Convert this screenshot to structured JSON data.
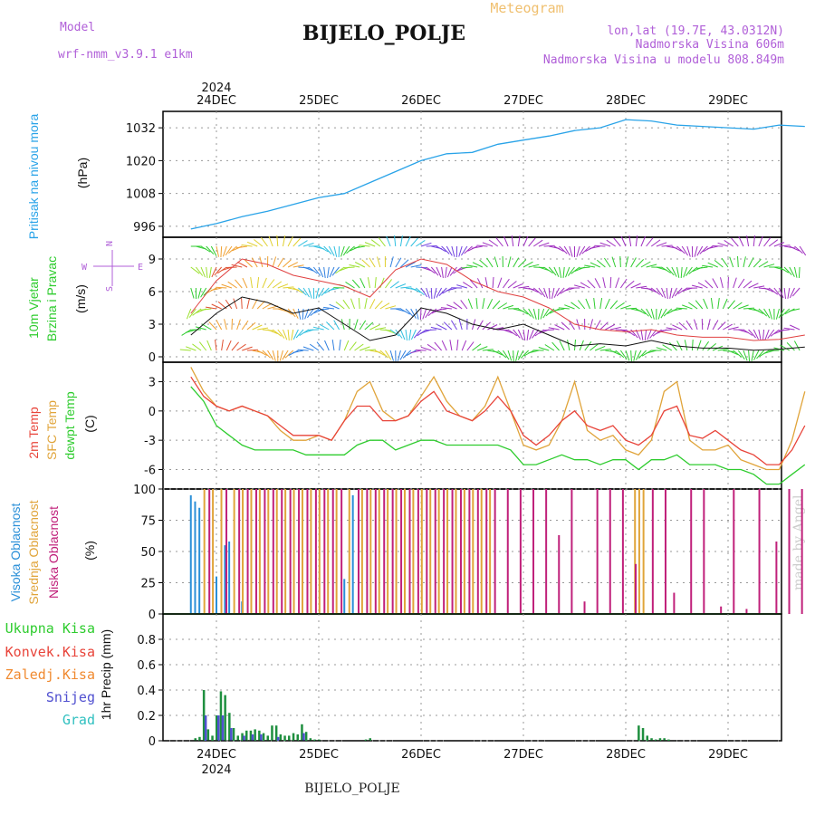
{
  "header": {
    "model_label": "Model",
    "model_name": "wrf-nmm_v3.9.1 e1km",
    "title": "BIJELO_POLJE",
    "product": "Meteogram",
    "lonlat": "lon,lat (19.7E, 43.0312N)",
    "altitude": "Nadmorska Visina 606m",
    "model_altitude": "Nadmorska Visina u modelu 808.849m",
    "footer": "BIJELO_POLJE",
    "watermark": "made by Angel"
  },
  "time_axis": {
    "top_year": "2024",
    "bottom_year": "2024",
    "days": [
      "24DEC",
      "25DEC",
      "26DEC",
      "27DEC",
      "28DEC",
      "29DEC"
    ]
  },
  "colors": {
    "pressure": "#29a3e8",
    "temp2m": "#e8443a",
    "sfc_temp": "#e0a43a",
    "dewpoint": "#2ecc2e",
    "high_cloud": "#2a8fd8",
    "mid_cloud": "#e0a43a",
    "low_cloud": "#c0207a",
    "precip_total": "#1f8f3f",
    "precip_conv": "#e8443a",
    "precip_frozen": "#f08a30",
    "snow": "#5050d0",
    "grad": "#30c0c0"
  },
  "panels": {
    "pressure": {
      "label1": "Pritisak na nivou mora",
      "unit": "(hPa)"
    },
    "wind": {
      "label1": "10m Vjetar",
      "label2": "Brzina i Pravac",
      "unit": "(m/s)",
      "compass_n": "N",
      "compass_w": "W",
      "compass_e": "E",
      "compass_s": "S"
    },
    "temp": {
      "label1": "2m Temp",
      "label2": "SFC Temp",
      "label3": "dewpt Temp",
      "unit": "(C)"
    },
    "cloud": {
      "label1": "Visoka Oblacnost",
      "label2": "Srednja Oblacnost",
      "label3": "Niska Oblacnost",
      "unit": "(%)"
    },
    "precip": {
      "l1": "Ukupna Kisa",
      "l2": "Konvek.Kisa",
      "l3": "Zaledj.Kisa",
      "l4": "Snijeg",
      "l5": "Grad",
      "unit": "1hr Precip (mm)"
    }
  },
  "chart_data": [
    {
      "type": "line",
      "title": "",
      "ylabel": "Pritisak na nivou mora (hPa)",
      "ylim": [
        992,
        1038
      ],
      "yticks": [
        996,
        1008,
        1020,
        1032
      ],
      "x_hours": [
        0,
        6,
        12,
        18,
        24,
        30,
        36,
        42,
        48,
        54,
        60,
        66,
        72,
        78,
        84,
        90,
        96,
        102,
        108,
        114,
        120,
        126,
        132,
        138,
        144
      ],
      "series": [
        {
          "name": "",
          "values": [
            995,
            997,
            999.5,
            1001.5,
            1004,
            1006.5,
            1008,
            1012,
            1016,
            1020,
            1022.5,
            1023,
            1026,
            1027.5,
            1029,
            1031,
            1032,
            1035,
            1034.5,
            1033,
            1032.5,
            1032,
            1031.5,
            1033,
            1032.5
          ]
        }
      ]
    },
    {
      "type": "line",
      "title": "",
      "ylabel": "10m Vjetar Brzina i Pravac (m/s)",
      "ylim": [
        -0.5,
        11
      ],
      "yticks": [
        0,
        3,
        6,
        9
      ],
      "x_hours": [
        0,
        6,
        12,
        18,
        24,
        30,
        36,
        42,
        48,
        54,
        60,
        66,
        72,
        78,
        84,
        90,
        96,
        102,
        108,
        114,
        120,
        126,
        132,
        138,
        144
      ],
      "series": [
        {
          "name": "",
          "values": [
            2,
            4,
            5.5,
            5,
            4,
            4.5,
            3,
            1.5,
            2,
            4.5,
            4,
            3,
            2.5,
            3,
            2,
            1,
            1.2,
            1,
            1.5,
            1,
            0.8,
            0.8,
            0.6,
            0.7,
            0.9
          ]
        },
        {
          "name": "",
          "values": [
            4,
            7,
            9,
            8.5,
            7.5,
            7,
            6.5,
            5.5,
            8,
            9,
            8.5,
            7,
            6,
            5.5,
            4.5,
            3,
            2.5,
            2.3,
            2.5,
            2,
            1.8,
            1.8,
            1.5,
            1.6,
            2
          ]
        }
      ]
    },
    {
      "type": "line",
      "title": "",
      "ylabel": "Temp (C)",
      "ylim": [
        -8,
        5
      ],
      "yticks": [
        -6,
        -3,
        0,
        3
      ],
      "x_hours": [
        0,
        3,
        6,
        9,
        12,
        15,
        18,
        21,
        24,
        27,
        30,
        33,
        36,
        39,
        42,
        45,
        48,
        51,
        54,
        57,
        60,
        63,
        66,
        69,
        72,
        75,
        78,
        81,
        84,
        87,
        90,
        93,
        96,
        99,
        102,
        105,
        108,
        111,
        114,
        117,
        120,
        123,
        126,
        129,
        132,
        135,
        138,
        141,
        144
      ],
      "series": [
        {
          "name": "2m Temp",
          "values": [
            3.5,
            1.5,
            0.5,
            0,
            0.5,
            0,
            -0.5,
            -1.5,
            -2.5,
            -2.5,
            -2.5,
            -3,
            -1,
            0.5,
            0.5,
            -1,
            -1,
            -0.5,
            1,
            2,
            0,
            -0.5,
            -1,
            0,
            1.5,
            0,
            -2.5,
            -3.5,
            -2.5,
            -1,
            0,
            -1.5,
            -2,
            -1.5,
            -3,
            -3.5,
            -2.5,
            0,
            0.5,
            -2.5,
            -2.8,
            -2,
            -3,
            -4,
            -4.5,
            -5.5,
            -5.5,
            -4,
            -1.5
          ]
        },
        {
          "name": "SFC Temp",
          "values": [
            4.5,
            2,
            0.5,
            0,
            0.5,
            0,
            -0.5,
            -2,
            -3,
            -3,
            -2.5,
            -3,
            -1,
            2,
            3,
            0,
            -1,
            -0.5,
            1.5,
            3.5,
            1,
            -0.5,
            -1,
            0.5,
            3.5,
            0,
            -3.5,
            -4,
            -3.5,
            -1,
            3,
            -2,
            -3,
            -2.5,
            -4,
            -4.5,
            -3,
            2,
            3,
            -3,
            -4,
            -4,
            -3.5,
            -5,
            -5.5,
            -6,
            -6,
            -3,
            2
          ]
        },
        {
          "name": "dewpt Temp",
          "values": [
            2.5,
            1,
            -1.5,
            -2.5,
            -3.5,
            -4,
            -4,
            -4,
            -4,
            -4.5,
            -4.5,
            -4.5,
            -4.5,
            -3.5,
            -3,
            -3,
            -4,
            -3.5,
            -3,
            -3,
            -3.5,
            -3.5,
            -3.5,
            -3.5,
            -3.5,
            -4,
            -5.5,
            -5.5,
            -5,
            -4.5,
            -5,
            -5,
            -5.5,
            -5,
            -5,
            -6,
            -5,
            -5,
            -4.5,
            -5.5,
            -5.5,
            -5.5,
            -6,
            -6,
            -6.5,
            -7.5,
            -7.5,
            -6.5,
            -5.5
          ]
        }
      ]
    },
    {
      "type": "bar",
      "title": "",
      "ylabel": "Oblacnost (%)",
      "ylim": [
        0,
        100
      ],
      "yticks": [
        0,
        25,
        50,
        75,
        100
      ],
      "series": [
        {
          "name": "Visoka Oblacnost",
          "x_hours": [
            0,
            1,
            2,
            6,
            8,
            9,
            12,
            36,
            38
          ],
          "values": [
            95,
            90,
            85,
            30,
            55,
            58,
            10,
            28,
            95
          ]
        },
        {
          "name": "Srednja Oblacnost",
          "x_hours": [
            3,
            5,
            7,
            10,
            12,
            14,
            16,
            18,
            20,
            22,
            24,
            26,
            28,
            30,
            32,
            34,
            37,
            40,
            42,
            44,
            46,
            48,
            50,
            52,
            54,
            56,
            58,
            60,
            62,
            64,
            66,
            68,
            70,
            104,
            105,
            106
          ],
          "values": [
            100,
            100,
            100,
            100,
            100,
            100,
            100,
            100,
            100,
            100,
            100,
            100,
            100,
            100,
            100,
            100,
            100,
            100,
            100,
            100,
            100,
            100,
            100,
            100,
            100,
            100,
            100,
            100,
            100,
            100,
            100,
            100,
            100,
            100,
            100,
            100
          ]
        },
        {
          "name": "Niska Oblacnost",
          "x_hours": [
            4,
            8,
            11,
            13,
            15,
            17,
            19,
            21,
            23,
            25,
            27,
            29,
            31,
            33,
            35,
            39,
            41,
            43,
            45,
            47,
            49,
            51,
            53,
            55,
            57,
            59,
            61,
            63,
            65,
            67,
            69,
            71,
            74,
            77,
            80,
            83,
            86,
            89,
            92,
            95,
            98,
            101,
            104,
            108,
            111,
            113,
            117,
            120,
            124,
            127,
            130,
            133,
            137,
            140,
            143
          ],
          "values": [
            100,
            100,
            100,
            100,
            100,
            100,
            100,
            100,
            100,
            100,
            100,
            100,
            100,
            100,
            100,
            100,
            100,
            100,
            100,
            100,
            100,
            100,
            100,
            100,
            100,
            100,
            100,
            100,
            100,
            100,
            100,
            100,
            100,
            100,
            100,
            100,
            63,
            100,
            10,
            100,
            100,
            100,
            40,
            100,
            100,
            17,
            100,
            100,
            6,
            100,
            4,
            100,
            58,
            100,
            100
          ]
        }
      ]
    },
    {
      "type": "bar",
      "title": "",
      "ylabel": "1hr Precip (mm)",
      "ylim": [
        0,
        1.0
      ],
      "yticks": [
        0,
        0.2,
        0.4,
        0.6,
        0.8
      ],
      "series": [
        {
          "name": "Ukupna Kisa",
          "x_hours": [
            1,
            2,
            3,
            4,
            5,
            6,
            7,
            8,
            9,
            10,
            11,
            12,
            13,
            14,
            15,
            16,
            17,
            18,
            19,
            20,
            21,
            22,
            23,
            24,
            25,
            26,
            27,
            28,
            29,
            30,
            41,
            42,
            105,
            106,
            107,
            108,
            109,
            110,
            111,
            112
          ],
          "values": [
            0.02,
            0.03,
            0.4,
            0.09,
            0.04,
            0.2,
            0.39,
            0.36,
            0.22,
            0.1,
            0.04,
            0.06,
            0.08,
            0.08,
            0.09,
            0.08,
            0.06,
            0.04,
            0.12,
            0.12,
            0.05,
            0.04,
            0.04,
            0.06,
            0.05,
            0.13,
            0.07,
            0.02,
            0.01,
            0.01,
            0.01,
            0.02,
            0.12,
            0.1,
            0.04,
            0.02,
            0.01,
            0.02,
            0.02,
            0.01
          ]
        },
        {
          "name": "Snijeg",
          "x_hours": [
            3,
            6,
            7,
            9,
            12,
            14,
            16,
            20,
            26
          ],
          "values": [
            0.2,
            0.2,
            0.2,
            0.1,
            0.04,
            0.05,
            0.05,
            0.03,
            0.06
          ]
        }
      ]
    }
  ]
}
